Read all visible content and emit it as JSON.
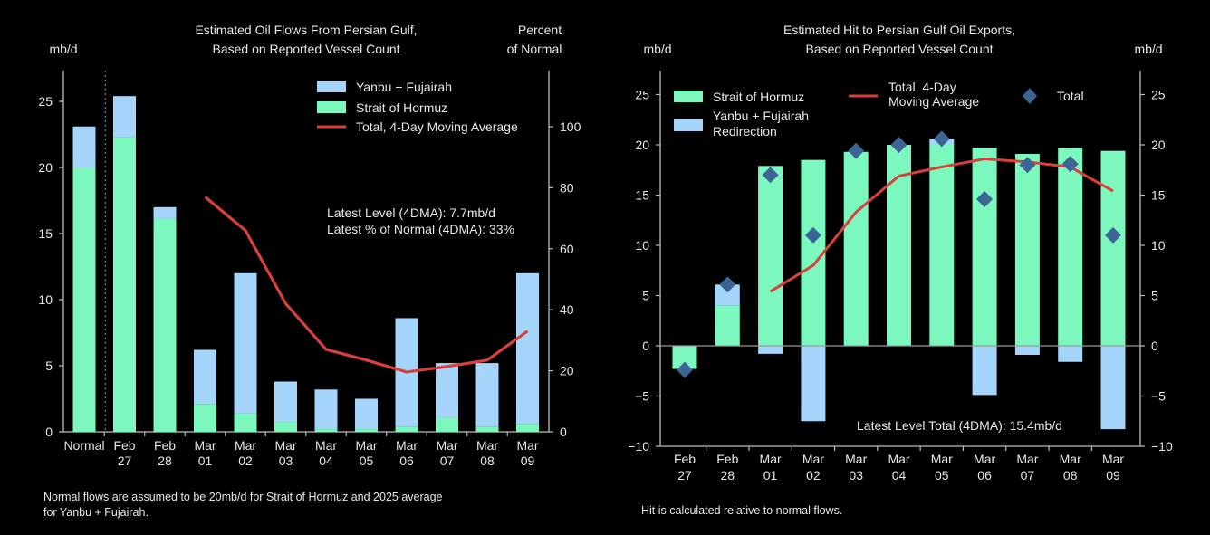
{
  "colors": {
    "hormuz": "#7cf7bd",
    "yanbu": "#a6d5fb",
    "line": "#d9403d",
    "diamond": "#3c6494",
    "axis": "#bdbdbd",
    "text": "#e6e6e6"
  },
  "chart_data": [
    {
      "type": "bar",
      "stacked": true,
      "title": [
        "Estimated Oil Flows From Persian Gulf,",
        "Based on Reported Vessel Count"
      ],
      "ylabel": "mb/d",
      "y2label": [
        "Percent",
        "of Normal"
      ],
      "ylim": [
        0,
        27
      ],
      "yticks": [
        0,
        5,
        10,
        15,
        20,
        25
      ],
      "y2lim": [
        0,
        117
      ],
      "y2ticks": [
        0,
        20,
        40,
        60,
        80,
        100
      ],
      "categories": [
        [
          "Normal",
          ""
        ],
        [
          "Feb",
          "27"
        ],
        [
          "Feb",
          "28"
        ],
        [
          "Mar",
          "01"
        ],
        [
          "Mar",
          "02"
        ],
        [
          "Mar",
          "03"
        ],
        [
          "Mar",
          "04"
        ],
        [
          "Mar",
          "05"
        ],
        [
          "Mar",
          "06"
        ],
        [
          "Mar",
          "07"
        ],
        [
          "Mar",
          "08"
        ],
        [
          "Mar",
          "09"
        ]
      ],
      "series": [
        {
          "name": "Strait of Hormuz",
          "values": [
            20.0,
            22.3,
            16.1,
            2.1,
            1.4,
            0.75,
            0.2,
            0.2,
            0.4,
            1.1,
            0.4,
            0.6
          ]
        },
        {
          "name": "Yanbu + Fujairah",
          "values": [
            3.1,
            3.1,
            0.9,
            4.1,
            10.6,
            3.05,
            3.0,
            2.3,
            8.2,
            4.1,
            4.8,
            11.4
          ]
        },
        {
          "name": "Total, 4-Day Moving Average",
          "axis": "right",
          "values": [
            null,
            null,
            null,
            77,
            66,
            42,
            27,
            23.5,
            19.6,
            21.4,
            23.5,
            33
          ]
        }
      ],
      "legend": [
        "Yanbu + Fujairah",
        "Strait of Hormuz",
        "Total, 4-Day Moving Average"
      ],
      "legend_position": "top-right",
      "divider_after": "Normal",
      "annotations": [
        "Latest Level (4DMA): 7.7mb/d",
        "Latest % of Normal (4DMA): 33%"
      ],
      "footnote": [
        "Normal flows are assumed to be 20mb/d for Strait of Hormuz and 2025 average",
        "for Yanbu + Fujairah."
      ]
    },
    {
      "type": "bar",
      "stacked": true,
      "title": [
        "Estimated Hit to Persian Gulf Oil Exports,",
        "Based on Reported Vessel Count"
      ],
      "ylabel": "mb/d",
      "y2label": [
        "mb/d"
      ],
      "ylim": [
        -10,
        27
      ],
      "yticks": [
        -10,
        -5,
        0,
        5,
        10,
        15,
        20,
        25
      ],
      "categories": [
        [
          "Feb",
          "27"
        ],
        [
          "Feb",
          "28"
        ],
        [
          "Mar",
          "01"
        ],
        [
          "Mar",
          "02"
        ],
        [
          "Mar",
          "03"
        ],
        [
          "Mar",
          "04"
        ],
        [
          "Mar",
          "05"
        ],
        [
          "Mar",
          "06"
        ],
        [
          "Mar",
          "07"
        ],
        [
          "Mar",
          "08"
        ],
        [
          "Mar",
          "09"
        ]
      ],
      "series": [
        {
          "name": "Strait of Hormuz",
          "values": [
            -2.3,
            4.0,
            17.9,
            18.5,
            19.3,
            20.0,
            20.0,
            19.7,
            19.1,
            19.7,
            19.4
          ]
        },
        {
          "name": "Yanbu + Fujairah Redirection",
          "values": [
            0,
            2.1,
            -0.8,
            -7.5,
            0,
            0,
            0.6,
            -4.9,
            -0.9,
            -1.6,
            -8.3
          ]
        },
        {
          "name": "Total, 4-Day Moving Average",
          "values": [
            null,
            null,
            5.4,
            8.0,
            13.3,
            16.9,
            17.8,
            18.6,
            18.3,
            17.8,
            15.4
          ]
        },
        {
          "name": "Total",
          "marker": "diamond",
          "values": [
            -2.4,
            6.1,
            17.0,
            11.0,
            19.4,
            20.0,
            20.6,
            14.6,
            18.0,
            18.1,
            11.0
          ]
        }
      ],
      "legend": [
        [
          "Strait of Hormuz"
        ],
        [
          "Yanbu + Fujairah",
          "Redirection"
        ],
        [
          "Total, 4-Day",
          "Moving Average"
        ],
        [
          "Total"
        ]
      ],
      "legend_position": "top",
      "annotations": [
        "Latest Level Total (4DMA): 15.4mb/d"
      ],
      "footnote": [
        "Hit is calculated relative to normal flows."
      ]
    }
  ]
}
